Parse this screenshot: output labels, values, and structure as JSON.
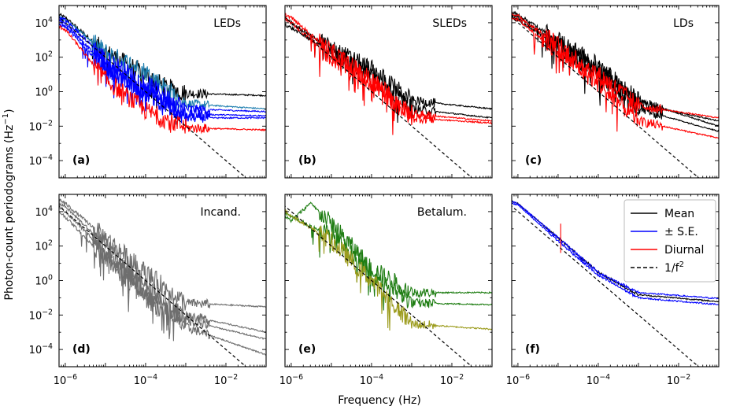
{
  "figure": {
    "ylabel_main": "Photon-count periodograms (Hz",
    "ylabel_sup": "−1",
    "ylabel_close": ")",
    "xlabel": "Frequency (Hz)"
  },
  "colors": {
    "mean": "#000000",
    "se": "#0000ff",
    "diurnal": "#ff0000",
    "ref": "#000000",
    "led_cyan": "#1f7faf",
    "incand": "#6e6e6e",
    "betalum_green": "#1e7d12",
    "betalum_olive": "#9c9c1e"
  },
  "legend": {
    "entries": [
      {
        "label": "Mean",
        "color": "#000000",
        "dashed": false
      },
      {
        "label": "± S.E.",
        "color": "#0000ff",
        "dashed": false
      },
      {
        "label": "Diurnal",
        "color": "#ff0000",
        "dashed": false
      },
      {
        "label": "1/f",
        "sup": "2",
        "color": "#000000",
        "dashed": true
      }
    ]
  },
  "tick_labels": {
    "x": [
      {
        "base": "10",
        "exp": "−6",
        "value": -6
      },
      {
        "base": "10",
        "exp": "−4",
        "value": -4
      },
      {
        "base": "10",
        "exp": "−2",
        "value": -2
      }
    ],
    "y": [
      {
        "base": "10",
        "exp": "4",
        "value": 4
      },
      {
        "base": "10",
        "exp": "2",
        "value": 2
      },
      {
        "base": "10",
        "exp": "0",
        "value": 0
      },
      {
        "base": "10",
        "exp": "−2",
        "value": -2
      },
      {
        "base": "10",
        "exp": "−4",
        "value": -4
      }
    ]
  },
  "chart_data": [
    {
      "type": "line",
      "panel": "(a)",
      "title": "LEDs",
      "xscale": "log",
      "yscale": "log",
      "xlim": [
        7e-07,
        0.1
      ],
      "ylim": [
        1e-05,
        100000.0
      ],
      "reference_line": "1/f^2",
      "series": [
        {
          "color": "#000000",
          "x": [
            7e-07,
            1e-06,
            1e-05,
            0.0001,
            0.0003,
            0.001,
            0.1
          ],
          "y": [
            30000,
            20000,
            200,
            10,
            2,
            0.8,
            0.6
          ]
        },
        {
          "color": "#1f7faf",
          "x": [
            7e-07,
            1e-06,
            1e-05,
            0.0001,
            0.001,
            0.1
          ],
          "y": [
            20000,
            15000,
            200,
            15,
            0.2,
            0.1
          ]
        },
        {
          "color": "#0000ff",
          "x": [
            7e-07,
            1e-06,
            1e-05,
            0.0001,
            0.001,
            0.1
          ],
          "y": [
            20000,
            15000,
            80,
            3,
            0.1,
            0.07
          ]
        },
        {
          "color": "#0000ff",
          "x": [
            7e-07,
            1e-06,
            1e-05,
            0.0001,
            0.001,
            0.1
          ],
          "y": [
            12000,
            10000,
            30,
            1,
            0.05,
            0.04
          ]
        },
        {
          "color": "#0000ff",
          "x": [
            7e-07,
            1e-06,
            1e-05,
            0.0001,
            0.001,
            0.1
          ],
          "y": [
            8000,
            6000,
            20,
            1,
            0.03,
            0.03
          ]
        },
        {
          "color": "#ff0000",
          "x": [
            7e-07,
            1e-06,
            1e-05,
            0.0001,
            0.001,
            0.1
          ],
          "y": [
            6000,
            4000,
            5,
            0.08,
            0.008,
            0.006
          ]
        }
      ]
    },
    {
      "type": "line",
      "panel": "(b)",
      "title": "SLEDs",
      "xscale": "log",
      "yscale": "log",
      "xlim": [
        7e-07,
        0.1
      ],
      "ylim": [
        1e-05,
        100000.0
      ],
      "reference_line": "1/f^2",
      "series": [
        {
          "color": "#000000",
          "x": [
            7e-07,
            1e-06,
            1e-05,
            0.0001,
            0.001,
            0.1
          ],
          "y": [
            20000,
            10000,
            300,
            20,
            0.3,
            0.1
          ]
        },
        {
          "color": "#000000",
          "x": [
            7e-07,
            1e-06,
            1e-05,
            0.0001,
            0.001,
            0.1
          ],
          "y": [
            8000,
            5000,
            200,
            10,
            0.1,
            0.03
          ]
        },
        {
          "color": "#ff0000",
          "x": [
            7e-07,
            1e-06,
            1e-05,
            0.0001,
            0.001,
            0.1
          ],
          "y": [
            30000,
            20000,
            200,
            5,
            0.05,
            0.02
          ]
        },
        {
          "color": "#ff0000",
          "x": [
            7e-07,
            1e-06,
            1e-05,
            0.0001,
            0.001,
            0.1
          ],
          "y": [
            15000,
            10000,
            100,
            3,
            0.03,
            0.015
          ]
        }
      ]
    },
    {
      "type": "line",
      "panel": "(c)",
      "title": "LDs",
      "xscale": "log",
      "yscale": "log",
      "xlim": [
        7e-07,
        0.1
      ],
      "ylim": [
        1e-05,
        100000.0
      ],
      "reference_line": "1/f^2",
      "series": [
        {
          "color": "#000000",
          "x": [
            7e-07,
            1e-06,
            1e-05,
            0.0001,
            0.001,
            0.1
          ],
          "y": [
            40000,
            30000,
            1000,
            30,
            0.3,
            0.01
          ]
        },
        {
          "color": "#000000",
          "x": [
            7e-07,
            1e-06,
            1e-05,
            0.0001,
            0.001,
            0.1
          ],
          "y": [
            30000,
            20000,
            600,
            20,
            0.2,
            0.02
          ]
        },
        {
          "color": "#000000",
          "x": [
            7e-07,
            1e-06,
            1e-05,
            0.0001,
            0.001,
            0.1
          ],
          "y": [
            25000,
            15000,
            400,
            10,
            0.1,
            0.005
          ]
        },
        {
          "color": "#ff0000",
          "x": [
            7e-07,
            1e-06,
            1e-05,
            0.0001,
            0.001,
            0.1
          ],
          "y": [
            35000,
            25000,
            500,
            10,
            0.15,
            0.03
          ]
        },
        {
          "color": "#ff0000",
          "x": [
            7e-07,
            1e-06,
            1e-05,
            0.0001,
            0.001,
            0.1
          ],
          "y": [
            20000,
            15000,
            200,
            3,
            0.02,
            0.002
          ]
        }
      ]
    },
    {
      "type": "line",
      "panel": "(d)",
      "title": "Incand.",
      "xscale": "log",
      "yscale": "log",
      "xlim": [
        7e-07,
        0.1
      ],
      "ylim": [
        1e-05,
        100000.0
      ],
      "reference_line": "1/f^2",
      "series": [
        {
          "color": "#6e6e6e",
          "x": [
            7e-07,
            1e-06,
            1e-05,
            0.0001,
            0.001,
            0.1
          ],
          "y": [
            50000,
            30000,
            300,
            3,
            0.05,
            0.03
          ]
        },
        {
          "color": "#6e6e6e",
          "x": [
            7e-07,
            1e-06,
            1e-05,
            0.0001,
            0.001,
            0.1
          ],
          "y": [
            30000,
            20000,
            100,
            0.5,
            0.01,
            0.001
          ]
        },
        {
          "color": "#6e6e6e",
          "x": [
            7e-07,
            1e-06,
            1e-05,
            0.0001,
            0.001,
            0.1
          ],
          "y": [
            20000,
            10000,
            50,
            0.2,
            0.005,
            0.0004
          ]
        },
        {
          "color": "#6e6e6e",
          "x": [
            7e-07,
            1e-06,
            1e-05,
            0.0001,
            0.001,
            0.1
          ],
          "y": [
            10000,
            5000,
            20,
            0.1,
            0.002,
            5e-05
          ]
        }
      ]
    },
    {
      "type": "line",
      "panel": "(e)",
      "title": "Betalum.",
      "xscale": "log",
      "yscale": "log",
      "xlim": [
        7e-07,
        0.1
      ],
      "ylim": [
        1e-05,
        100000.0
      ],
      "reference_line": "1/f^2",
      "series": [
        {
          "color": "#1e7d12",
          "x": [
            7e-07,
            1e-06,
            3e-06,
            1e-05,
            0.0001,
            0.001,
            0.1
          ],
          "y": [
            5000,
            3000,
            30000,
            2000,
            5,
            0.2,
            0.2
          ]
        },
        {
          "color": "#1e7d12",
          "x": [
            7e-07,
            1e-06,
            1e-05,
            0.0001,
            0.001,
            0.1
          ],
          "y": [
            8000,
            5000,
            400,
            3,
            0.05,
            0.04
          ]
        },
        {
          "color": "#9c9c1e",
          "x": [
            7e-07,
            1e-06,
            1e-05,
            0.0001,
            0.001,
            0.1
          ],
          "y": [
            10000,
            6000,
            200,
            1,
            0.003,
            0.0015
          ]
        }
      ]
    },
    {
      "type": "line",
      "panel": "(f)",
      "xscale": "log",
      "yscale": "log",
      "xlim": [
        7e-07,
        0.1
      ],
      "ylim": [
        1e-05,
        100000.0
      ],
      "reference_line": "1/f^2",
      "series": [
        {
          "name": "Mean",
          "color": "#000000",
          "x": [
            7e-07,
            1e-06,
            1e-05,
            0.0001,
            0.001,
            0.1
          ],
          "y": [
            40000,
            30000,
            300,
            3,
            0.15,
            0.06
          ]
        },
        {
          "name": "± S.E.",
          "color": "#0000ff",
          "x": [
            7e-07,
            1e-06,
            1e-05,
            0.0001,
            0.001,
            0.1
          ],
          "y": [
            40000,
            30000,
            300,
            3,
            0.2,
            0.09
          ]
        },
        {
          "name": "± S.E.",
          "color": "#0000ff",
          "x": [
            7e-07,
            1e-06,
            1e-05,
            0.0001,
            0.001,
            0.1
          ],
          "y": [
            30000,
            25000,
            200,
            2,
            0.1,
            0.04
          ]
        },
        {
          "name": "Diurnal",
          "color": "#ff0000",
          "x": [
            1.157e-05,
            1.157e-05
          ],
          "y": [
            40,
            2000
          ]
        }
      ]
    }
  ]
}
